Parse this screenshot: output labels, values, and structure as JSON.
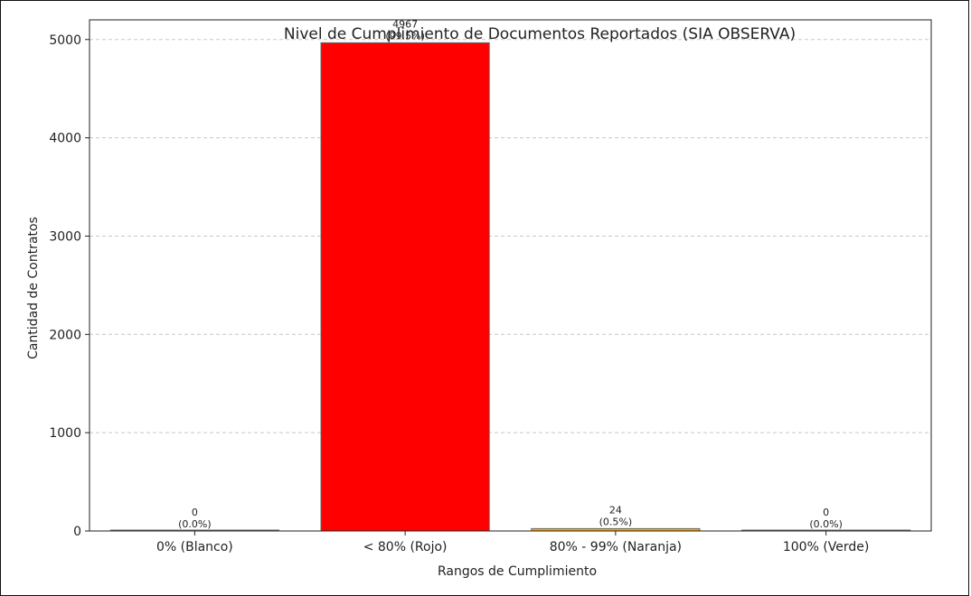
{
  "chart_data": {
    "type": "bar",
    "title": "Nivel de Cumplimiento de Documentos Reportados (SIA OBSERVA)",
    "xlabel": "Rangos de Cumplimiento",
    "ylabel": "Cantidad de Contratos",
    "categories": [
      "0% (Blanco)",
      "< 80% (Rojo)",
      "80% - 99% (Naranja)",
      "100% (Verde)"
    ],
    "values": [
      0,
      4967,
      24,
      0
    ],
    "percent_labels": [
      "(0.0%)",
      "(99.5%)",
      "(0.5%)",
      "(0.0%)"
    ],
    "colors": [
      "#ffffff",
      "#ff0000",
      "#ffa500",
      "#00b050"
    ],
    "edge_color": "#666666",
    "yticks": [
      0,
      1000,
      2000,
      3000,
      4000,
      5000
    ],
    "ylim": [
      0,
      5200
    ],
    "grid": true
  }
}
